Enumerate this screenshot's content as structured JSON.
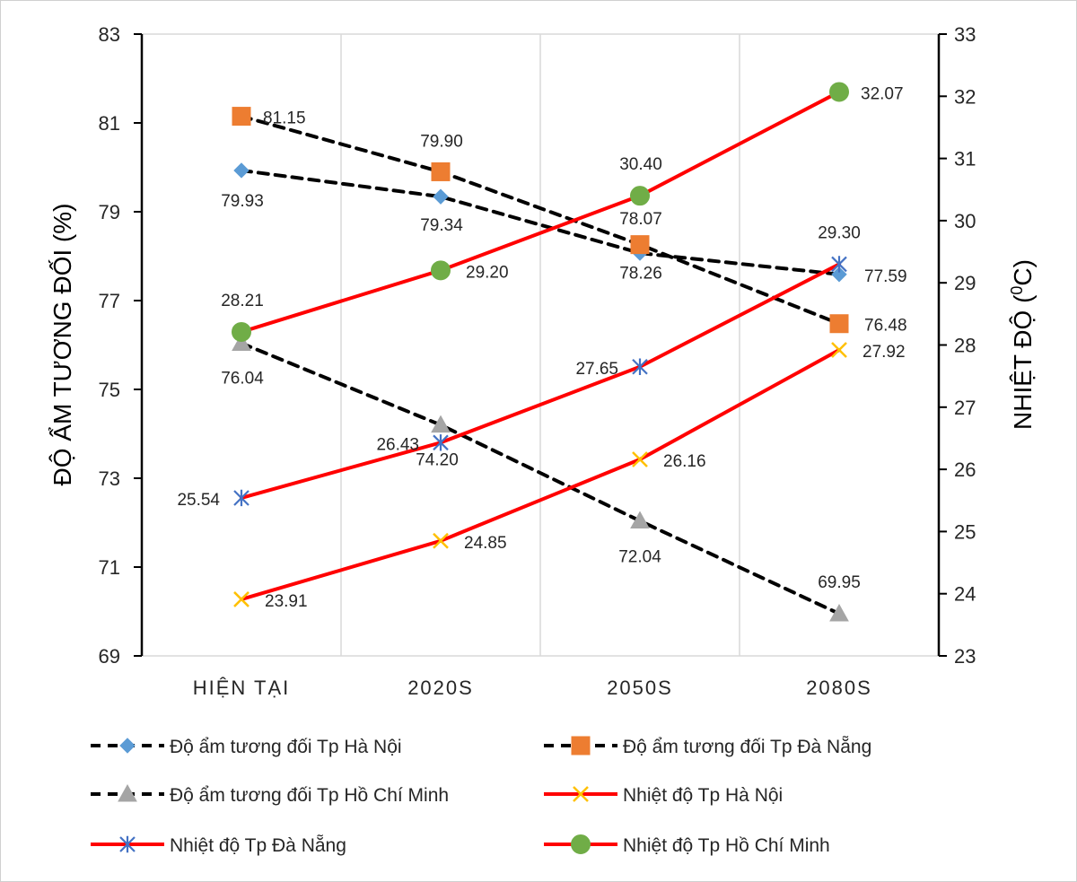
{
  "chart_data": {
    "type": "line",
    "categories": [
      "HIỆN TẠI",
      "2020S",
      "2050S",
      "2080S"
    ],
    "y_left": {
      "label": "ĐỘ ẨM TƯƠNG ĐỐI (%)",
      "range": [
        69,
        83
      ],
      "ticks": [
        "69",
        "71",
        "73",
        "75",
        "77",
        "79",
        "81",
        "83"
      ]
    },
    "y_right": {
      "label_main": "NHIỆT ĐỘ (",
      "label_sup": "0",
      "label_end": "C)",
      "range": [
        23,
        33
      ],
      "ticks": [
        "23",
        "24",
        "25",
        "26",
        "27",
        "28",
        "29",
        "30",
        "31",
        "32",
        "33"
      ]
    },
    "grid": "vertical",
    "series": [
      {
        "name": "Độ ẩm tương đối Tp Hà Nội",
        "axis": "left",
        "line_color": "#000000",
        "line_style": "dashed",
        "marker": "diamond",
        "marker_color": "#5B9BD5",
        "values": [
          79.93,
          79.34,
          78.07,
          77.59
        ],
        "labels": [
          "79.93",
          "79.34",
          "78.07",
          "77.59"
        ]
      },
      {
        "name": "Độ ẩm tương đối Tp Đà Nẵng",
        "axis": "left",
        "line_color": "#000000",
        "line_style": "dashed",
        "marker": "square",
        "marker_color": "#ED7D31",
        "values": [
          81.15,
          79.9,
          78.26,
          76.48
        ],
        "labels": [
          "81.15",
          "79.90",
          "78.26",
          "76.48"
        ]
      },
      {
        "name": "Độ ẩm tương đối Tp Hồ Chí Minh",
        "axis": "left",
        "line_color": "#000000",
        "line_style": "dashed",
        "marker": "triangle",
        "marker_color": "#A5A5A5",
        "values": [
          76.04,
          74.2,
          72.04,
          69.95
        ],
        "labels": [
          "76.04",
          "74.20",
          "72.04",
          "69.95"
        ]
      },
      {
        "name": "Nhiệt độ Tp Hà Nội",
        "axis": "right",
        "line_color": "#FF0000",
        "line_style": "solid",
        "marker": "x",
        "marker_color": "#FFC000",
        "values": [
          23.91,
          24.85,
          26.16,
          27.92
        ],
        "labels": [
          "23.91",
          "24.85",
          "26.16",
          "27.92"
        ]
      },
      {
        "name": "Nhiệt độ Tp Đà Nẵng",
        "axis": "right",
        "line_color": "#FF0000",
        "line_style": "solid",
        "marker": "star",
        "marker_color": "#4472C4",
        "values": [
          25.54,
          26.43,
          27.65,
          29.3
        ],
        "labels": [
          "25.54",
          "26.43",
          "27.65",
          "29.30"
        ]
      },
      {
        "name": "Nhiệt độ Tp Hồ Chí Minh",
        "axis": "right",
        "line_color": "#FF0000",
        "line_style": "solid",
        "marker": "circle",
        "marker_color": "#70AD47",
        "values": [
          28.21,
          29.2,
          30.4,
          32.07
        ],
        "labels": [
          "28.21",
          "29.20",
          "30.40",
          "32.07"
        ]
      }
    ],
    "legend_position": "bottom"
  }
}
